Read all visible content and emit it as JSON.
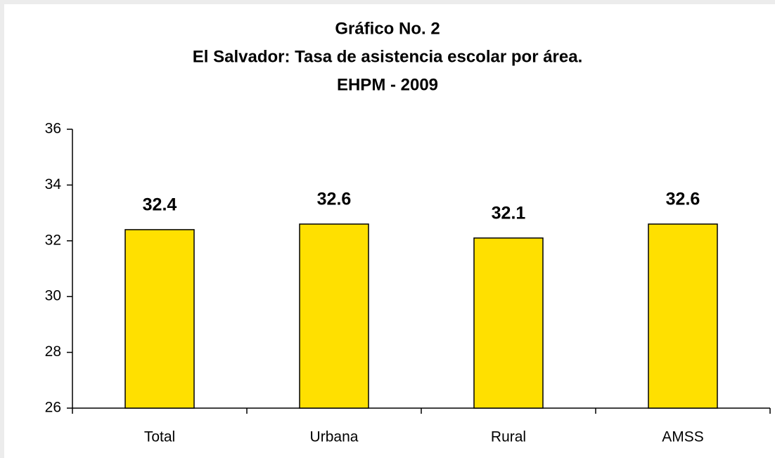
{
  "chart_data": {
    "type": "bar",
    "title": [
      "Gráfico No. 2",
      "El Salvador: Tasa de asistencia escolar por área.",
      "EHPM - 2009"
    ],
    "categories": [
      "Total",
      "Urbana",
      "Rural",
      "AMSS"
    ],
    "values": [
      32.4,
      32.6,
      32.1,
      32.6
    ],
    "color": "#FFE000",
    "ylim": [
      26,
      36
    ],
    "yticks": [
      26,
      28,
      30,
      32,
      34,
      36
    ],
    "grid": false
  }
}
